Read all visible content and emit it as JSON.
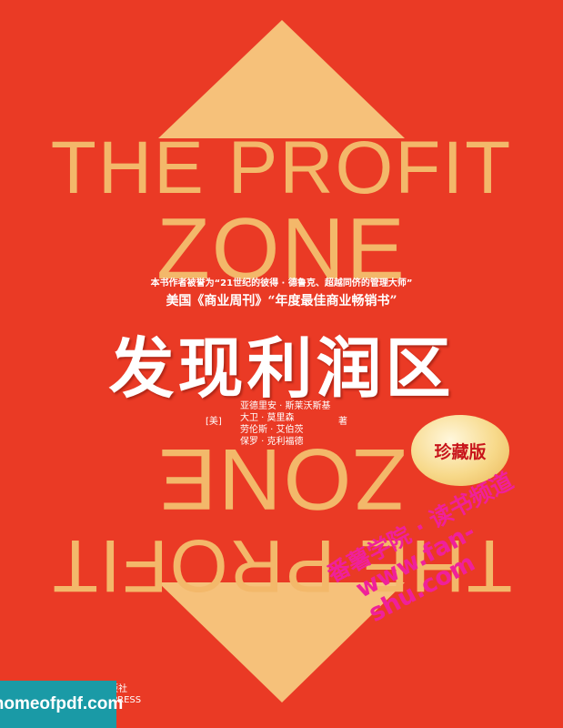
{
  "cover": {
    "title_en_line1": "THE PROFIT",
    "title_en_line2": "ZONE",
    "tagline1": "本书作者被誉为“21世纪的彼得 · 德鲁克、超越同侪的管理大师”",
    "tagline2": "美国《商业周刊》“年度最佳商业畅销书”",
    "title_cn": "发现利润区",
    "authors": [
      "亚德里安 · 斯莱沃斯基",
      "大卫 · 莫里森",
      "劳伦斯 · 艾伯茨",
      "保罗 · 克利福德"
    ],
    "country": "[美]",
    "role": "著",
    "edition_badge": "珍藏版",
    "publisher_line1": "出版社",
    "publisher_line2": "IC PRESS",
    "colors": {
      "background": "#ea3a25",
      "arrow": "#f6c17a",
      "title_en": "#f3b86a",
      "badge_text": "#c8151b"
    }
  },
  "watermarks": {
    "site_label": "homeofpdf.com",
    "diag_line1": "番薯学院 · 读书频道",
    "diag_line2": "www.fan-shu.com"
  }
}
